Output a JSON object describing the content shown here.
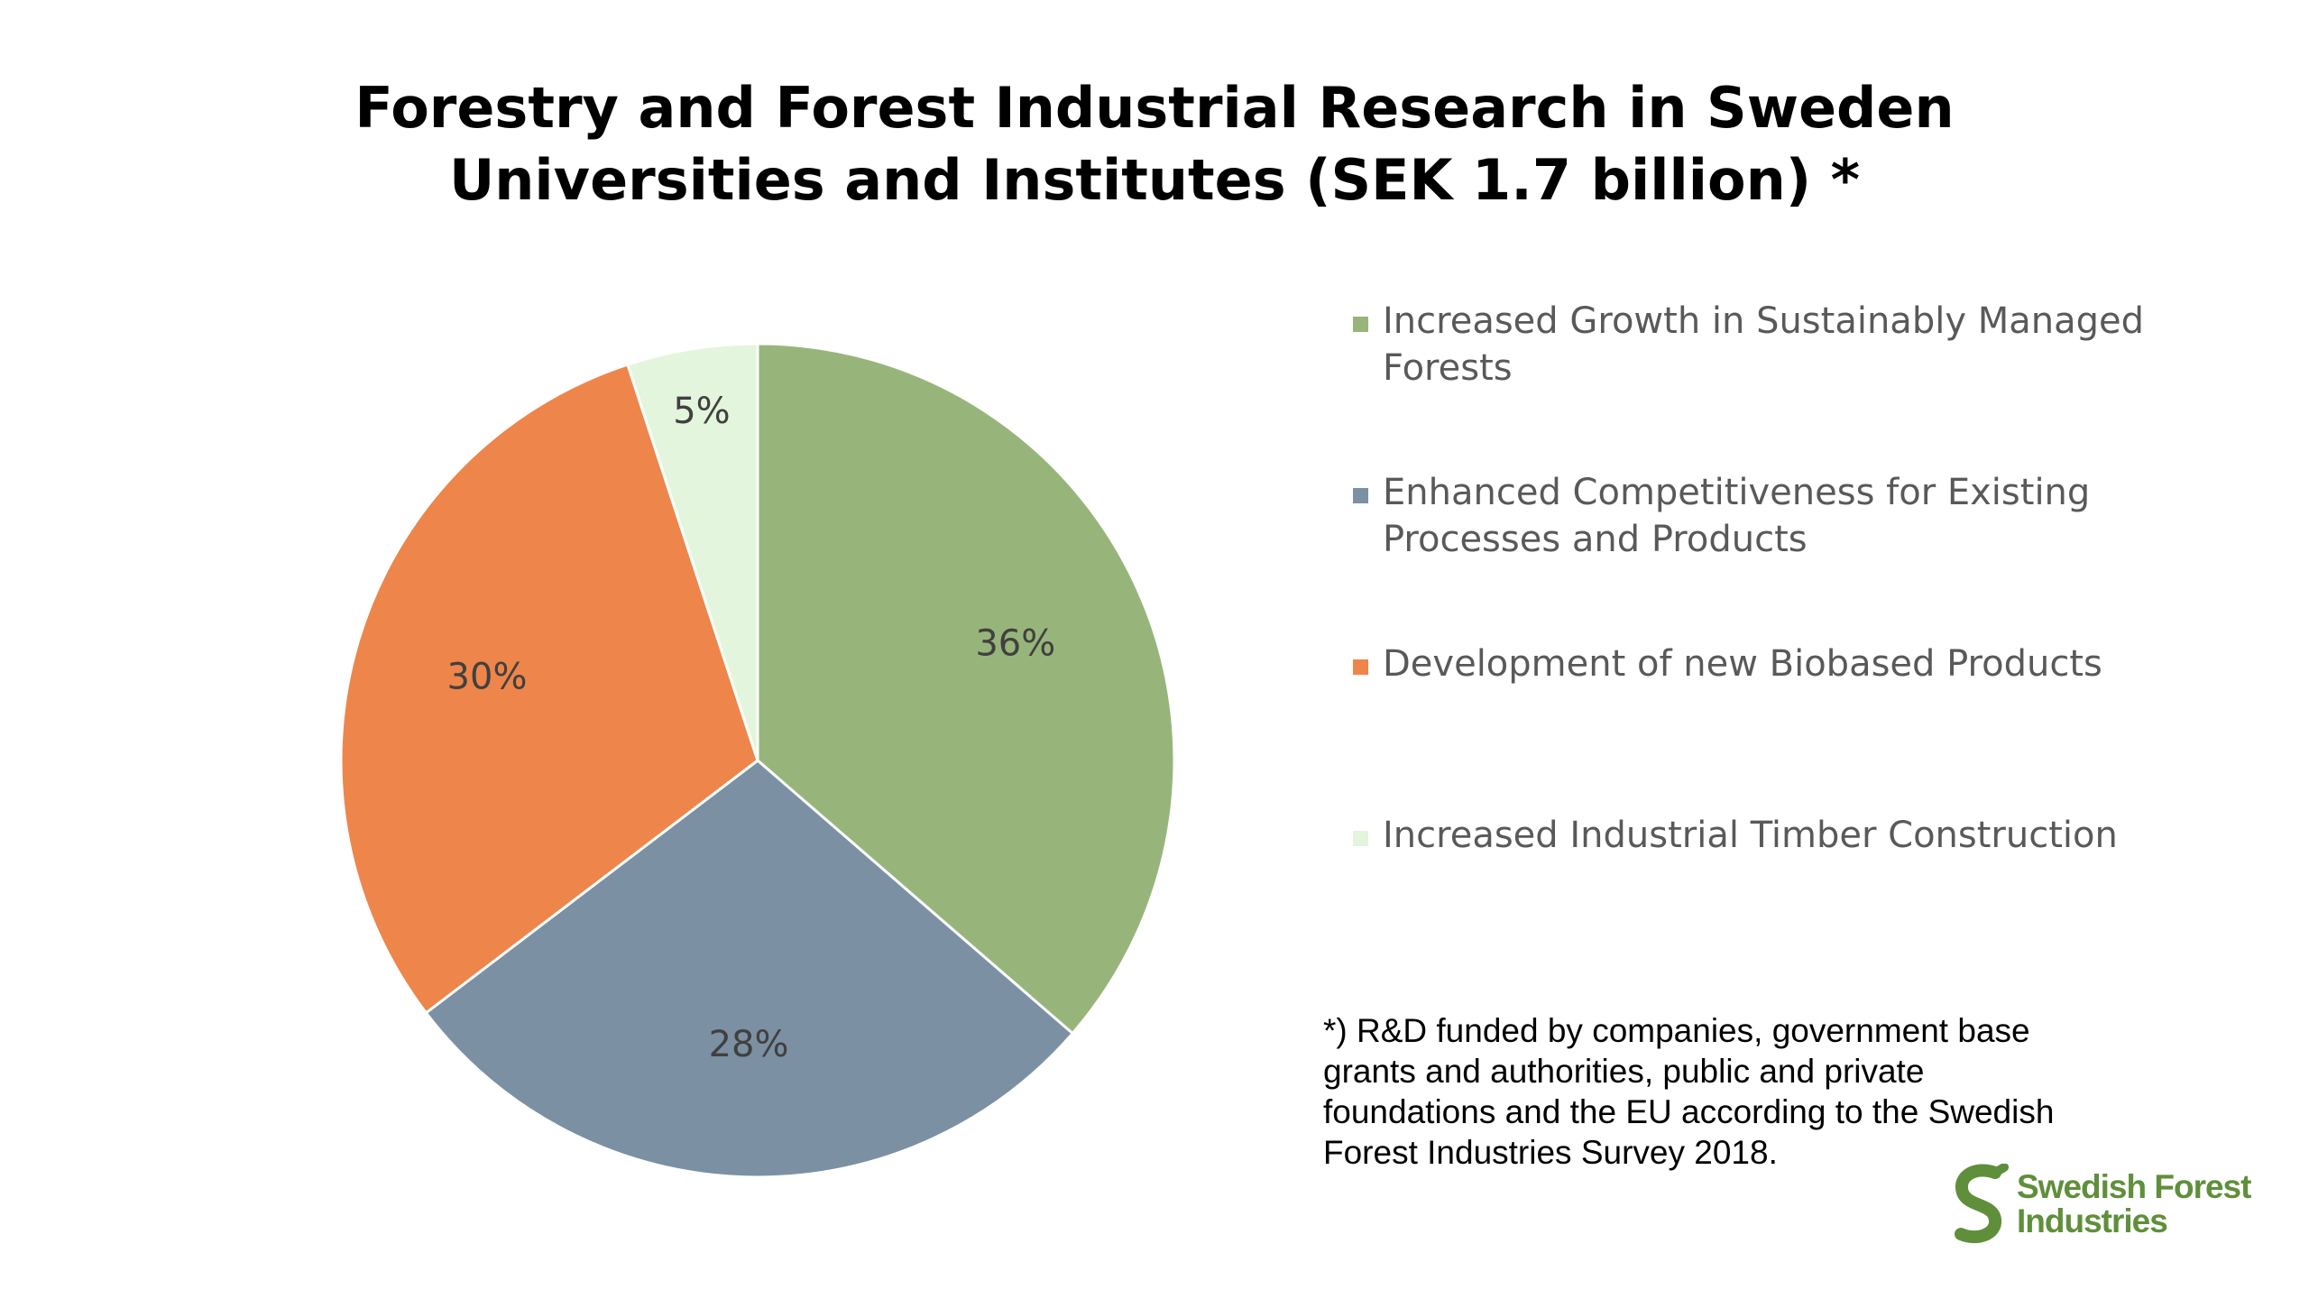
{
  "title": {
    "line1": "Forestry and Forest Industrial Research in Sweden",
    "line2": "Universities and Institutes (SEK 1.7 billion) *"
  },
  "chart_data": {
    "type": "pie",
    "title": "Forestry and Forest Industrial Research in Sweden Universities and Institutes (SEK 1.7 billion) *",
    "categories": [
      "Increased Growth in Sustainably Managed Forests",
      "Enhanced Competitiveness for Existing Processes and Products",
      "Development of new Biobased Products",
      "Increased Industrial Timber Construction"
    ],
    "values": [
      36,
      28,
      30,
      5
    ],
    "labels": [
      "36%",
      "28%",
      "30%",
      "5%"
    ],
    "colors": [
      "#97b57a",
      "#7b90a3",
      "#ee854a",
      "#e3f5dc"
    ],
    "legend_position": "right",
    "legend": [
      {
        "line1": "Increased Growth in Sustainably Managed",
        "line2": "Forests",
        "color": "#97b57a"
      },
      {
        "line1": "Enhanced Competitiveness for Existing",
        "line2": "Processes and Products",
        "color": "#7b90a3"
      },
      {
        "line1": "Development of new Biobased Products",
        "line2": "",
        "color": "#ee854a"
      },
      {
        "line1": "Increased Industrial Timber Construction",
        "line2": "",
        "color": "#e3f5dc"
      }
    ]
  },
  "footnote": {
    "lines": [
      "*) R&D funded by companies, government base",
      "grants and authorities, public and private",
      "foundations and the EU according to the Swedish",
      "Forest Industries Survey 2018."
    ]
  },
  "logo": {
    "line1": "Swedish Forest",
    "line2": "Industries",
    "icon": "swedish-forest-industries-s-logo",
    "color": "#5f8f3a"
  }
}
